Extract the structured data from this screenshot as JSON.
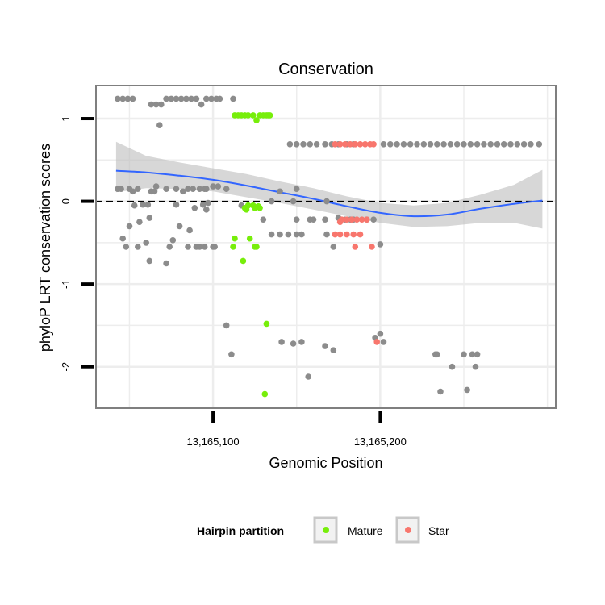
{
  "chart_data": {
    "type": "scatter",
    "title": "Conservation",
    "xlabel": "Genomic Position",
    "ylabel": "phyloP LRT conservation scores",
    "xlim": [
      13165030,
      13165305
    ],
    "ylim": [
      -2.5,
      1.4
    ],
    "x_ticks": [
      {
        "value": 13165100,
        "label": "13,165,100"
      },
      {
        "value": 13165200,
        "label": "13,165,200"
      }
    ],
    "y_ticks": [
      {
        "value": -2,
        "label": "-2"
      },
      {
        "value": -1,
        "label": "-1"
      },
      {
        "value": 0,
        "label": "0"
      },
      {
        "value": 1,
        "label": "1"
      }
    ],
    "reference_line": {
      "y": 0,
      "style": "dashed"
    },
    "colors": {
      "Other": "#8c8c8c",
      "Mature": "#77ee0a",
      "Star": "#f8766d",
      "smooth": "#3366ff",
      "ribbon": "#bdbdbd",
      "panel_border": "#7f7f7f",
      "grid": "#ededed"
    },
    "legend": {
      "title": "Hairpin partition",
      "position": "bottom",
      "entries": [
        {
          "name": "Mature",
          "color": "#77ee0a"
        },
        {
          "name": "Star",
          "color": "#f8766d"
        }
      ]
    },
    "smooth": {
      "x": [
        13165042,
        13165060,
        13165080,
        13165100,
        13165120,
        13165140,
        13165160,
        13165180,
        13165200,
        13165220,
        13165240,
        13165260,
        13165280,
        13165297
      ],
      "y": [
        0.37,
        0.35,
        0.31,
        0.26,
        0.19,
        0.11,
        0.03,
        -0.06,
        -0.14,
        -0.18,
        -0.16,
        -0.09,
        -0.03,
        0.01
      ],
      "lower": [
        0.11,
        0.16,
        0.15,
        0.12,
        0.05,
        -0.02,
        -0.1,
        -0.18,
        -0.26,
        -0.31,
        -0.3,
        -0.26,
        -0.26,
        -0.33
      ],
      "upper": [
        0.72,
        0.55,
        0.47,
        0.4,
        0.33,
        0.24,
        0.16,
        0.06,
        -0.02,
        -0.05,
        -0.02,
        0.08,
        0.2,
        0.38
      ]
    },
    "series": [
      {
        "name": "Other",
        "x": [
          13165043,
          13165046,
          13165049,
          13165052,
          13165063,
          13165066,
          13165069,
          13165072,
          13165075,
          13165078,
          13165081,
          13165084,
          13165087,
          13165090,
          13165093,
          13165096,
          13165099,
          13165102,
          13165146,
          13165150,
          13165154,
          13165158,
          13165162,
          13165167,
          13165171,
          13165175,
          13165180,
          13165184,
          13165202,
          13165206,
          13165210,
          13165214,
          13165218,
          13165222,
          13165226,
          13165230,
          13165234,
          13165238,
          13165242,
          13165246,
          13165250,
          13165254,
          13165258,
          13165262,
          13165266,
          13165270,
          13165274,
          13165278,
          13165282,
          13165286,
          13165290,
          13165295,
          13165104,
          13165112,
          13165068,
          13165043,
          13165050,
          13165055,
          13165066,
          13165072,
          13165085,
          13165092,
          13165100,
          13165103,
          13165053,
          13165058,
          13165061,
          13165078,
          13165094,
          13165097,
          13165089,
          13165062,
          13165046,
          13165060,
          13165076,
          13165090,
          13165101,
          13165055,
          13165080,
          13165086,
          13165095,
          13165130,
          13165150,
          13165158,
          13165167,
          13165182,
          13165184,
          13165192,
          13165196,
          13165145,
          13165153,
          13165172,
          13165168,
          13165200,
          13165135,
          13165140,
          13165160,
          13165179,
          13165150,
          13165048,
          13165062,
          13165074,
          13165092,
          13165072,
          13165085,
          13165100,
          13165096,
          13165117,
          13165135,
          13165148,
          13165168,
          13165056,
          13165050,
          13165063,
          13165108,
          13165175,
          13165045,
          13165078,
          13165088,
          13165150,
          13165140,
          13165095,
          13165065,
          13165052,
          13165082,
          13165096,
          13165141,
          13165148,
          13165153,
          13165167,
          13165172,
          13165202,
          13165197,
          13165200,
          13165157,
          13165233,
          13165236,
          13165243,
          13165250,
          13165255,
          13165258,
          13165234,
          13165252,
          13165257,
          13165108,
          13165111
        ],
        "y": [
          1.24,
          1.24,
          1.24,
          1.24,
          1.17,
          1.17,
          1.17,
          1.24,
          1.24,
          1.24,
          1.24,
          1.24,
          1.24,
          1.24,
          1.17,
          1.24,
          1.24,
          1.24,
          0.69,
          0.69,
          0.69,
          0.69,
          0.69,
          0.69,
          0.69,
          0.69,
          0.69,
          0.69,
          0.69,
          0.69,
          0.69,
          0.69,
          0.69,
          0.69,
          0.69,
          0.69,
          0.69,
          0.69,
          0.69,
          0.69,
          0.69,
          0.69,
          0.69,
          0.69,
          0.69,
          0.69,
          0.69,
          0.69,
          0.69,
          0.69,
          0.69,
          0.69,
          1.24,
          1.24,
          0.92,
          0.15,
          0.15,
          0.15,
          0.18,
          0.15,
          0.15,
          0.15,
          0.18,
          0.18,
          -0.05,
          -0.04,
          -0.04,
          -0.04,
          -0.04,
          -0.02,
          -0.08,
          -0.2,
          -0.45,
          -0.5,
          -0.47,
          -0.55,
          -0.55,
          -0.55,
          -0.3,
          -0.35,
          -0.55,
          -0.22,
          -0.22,
          -0.22,
          -0.22,
          -0.22,
          -0.22,
          -0.22,
          -0.22,
          -0.4,
          -0.4,
          -0.55,
          -0.4,
          -0.52,
          -0.4,
          -0.4,
          -0.22,
          -0.22,
          -0.4,
          -0.55,
          -0.72,
          -0.55,
          -0.55,
          -0.75,
          -0.55,
          -0.55,
          -0.1,
          -0.05,
          0,
          0,
          0,
          -0.25,
          -0.3,
          0.12,
          0.15,
          -0.2,
          0.15,
          0.15,
          0.15,
          0.15,
          0.12,
          0.15,
          0.12,
          0.12,
          0.12,
          0.15,
          -1.7,
          -1.72,
          -1.7,
          -1.75,
          -1.8,
          -1.7,
          -1.65,
          -1.6,
          -2.12,
          -1.85,
          -2.3,
          -2.0,
          -1.85,
          -1.85,
          -1.85,
          -1.85,
          -2.28,
          -2.0,
          -1.5,
          -1.85
        ],
        "color": "#8c8c8c"
      },
      {
        "name": "Mature",
        "x": [
          13165113,
          13165115,
          13165117,
          13165119,
          13165121,
          13165124,
          13165126,
          13165128,
          13165130,
          13165132,
          13165133,
          13165134,
          13165119,
          13165120,
          13165121,
          13165124,
          13165125,
          13165128,
          13165127,
          13165113,
          13165118,
          13165122,
          13165125,
          13165126,
          13165112,
          13165132,
          13165131
        ],
        "y": [
          1.04,
          1.04,
          1.04,
          1.04,
          1.04,
          1.04,
          0.98,
          1.04,
          1.04,
          1.04,
          1.04,
          1.04,
          -0.08,
          -0.1,
          -0.05,
          -0.05,
          -0.08,
          -0.08,
          -0.06,
          -0.45,
          -0.72,
          -0.45,
          -0.55,
          -0.55,
          -0.55,
          -1.48,
          -2.33
        ],
        "color": "#77ee0a"
      },
      {
        "name": "Star",
        "x": [
          13165173,
          13165176,
          13165179,
          13165182,
          13165185,
          13165188,
          13165191,
          13165194,
          13165196,
          13165177,
          13165180,
          13165183,
          13165186,
          13165189,
          13165192,
          13165173,
          13165176,
          13165180,
          13165184,
          13165188,
          13165176,
          13165185,
          13165195,
          13165198
        ],
        "y": [
          0.69,
          0.69,
          0.69,
          0.69,
          0.69,
          0.69,
          0.69,
          0.69,
          0.69,
          -0.22,
          -0.22,
          -0.22,
          -0.22,
          -0.22,
          -0.22,
          -0.4,
          -0.4,
          -0.4,
          -0.4,
          -0.4,
          -0.25,
          -0.55,
          -0.55,
          -1.7
        ],
        "color": "#f8766d"
      }
    ]
  }
}
